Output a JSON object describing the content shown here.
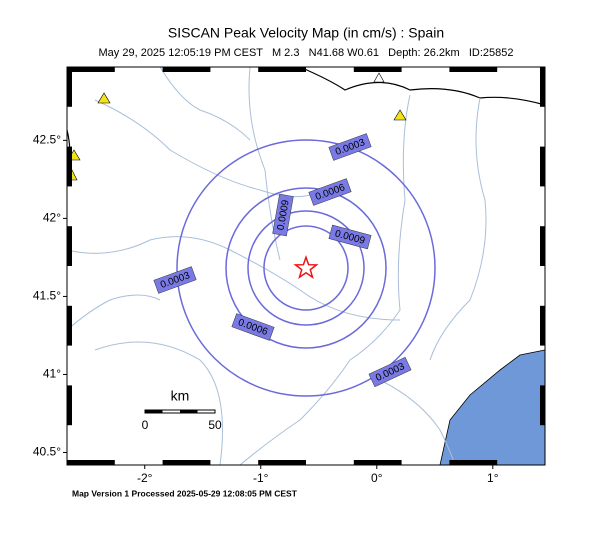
{
  "header": {
    "title": "SISCAN Peak Velocity Map (in cm/s) : Spain",
    "subtitle": "May 29, 2025 12:05:19 PM CEST   M 2.3   N41.68 W0.61   Depth: 26.2km   ID:25852"
  },
  "map": {
    "xlim": [
      -2.67,
      1.45
    ],
    "ylim": [
      40.42,
      42.97
    ],
    "xticks": [
      {
        "value": -2,
        "label": "-2°"
      },
      {
        "value": -1,
        "label": "-1°"
      },
      {
        "value": 0,
        "label": "0°"
      },
      {
        "value": 1,
        "label": "1°"
      }
    ],
    "yticks": [
      {
        "value": 40.5,
        "label": "40.5°"
      },
      {
        "value": 41,
        "label": "41°"
      },
      {
        "value": 41.5,
        "label": "41.5°"
      },
      {
        "value": 42,
        "label": "42°"
      },
      {
        "value": 42.5,
        "label": "42.5°"
      }
    ],
    "epicenter": {
      "lat": 41.68,
      "lon": -0.61
    },
    "contour_labels": [
      "0.0003",
      "0.0003",
      "0.0003",
      "0.0006",
      "0.0006",
      "0.0009",
      "0.0009"
    ],
    "scale": {
      "unit": "km",
      "start": "0",
      "end": "50"
    }
  },
  "footer": {
    "text": "Map Version 1 Processed 2025-05-29 12:08:05 PM CEST"
  }
}
